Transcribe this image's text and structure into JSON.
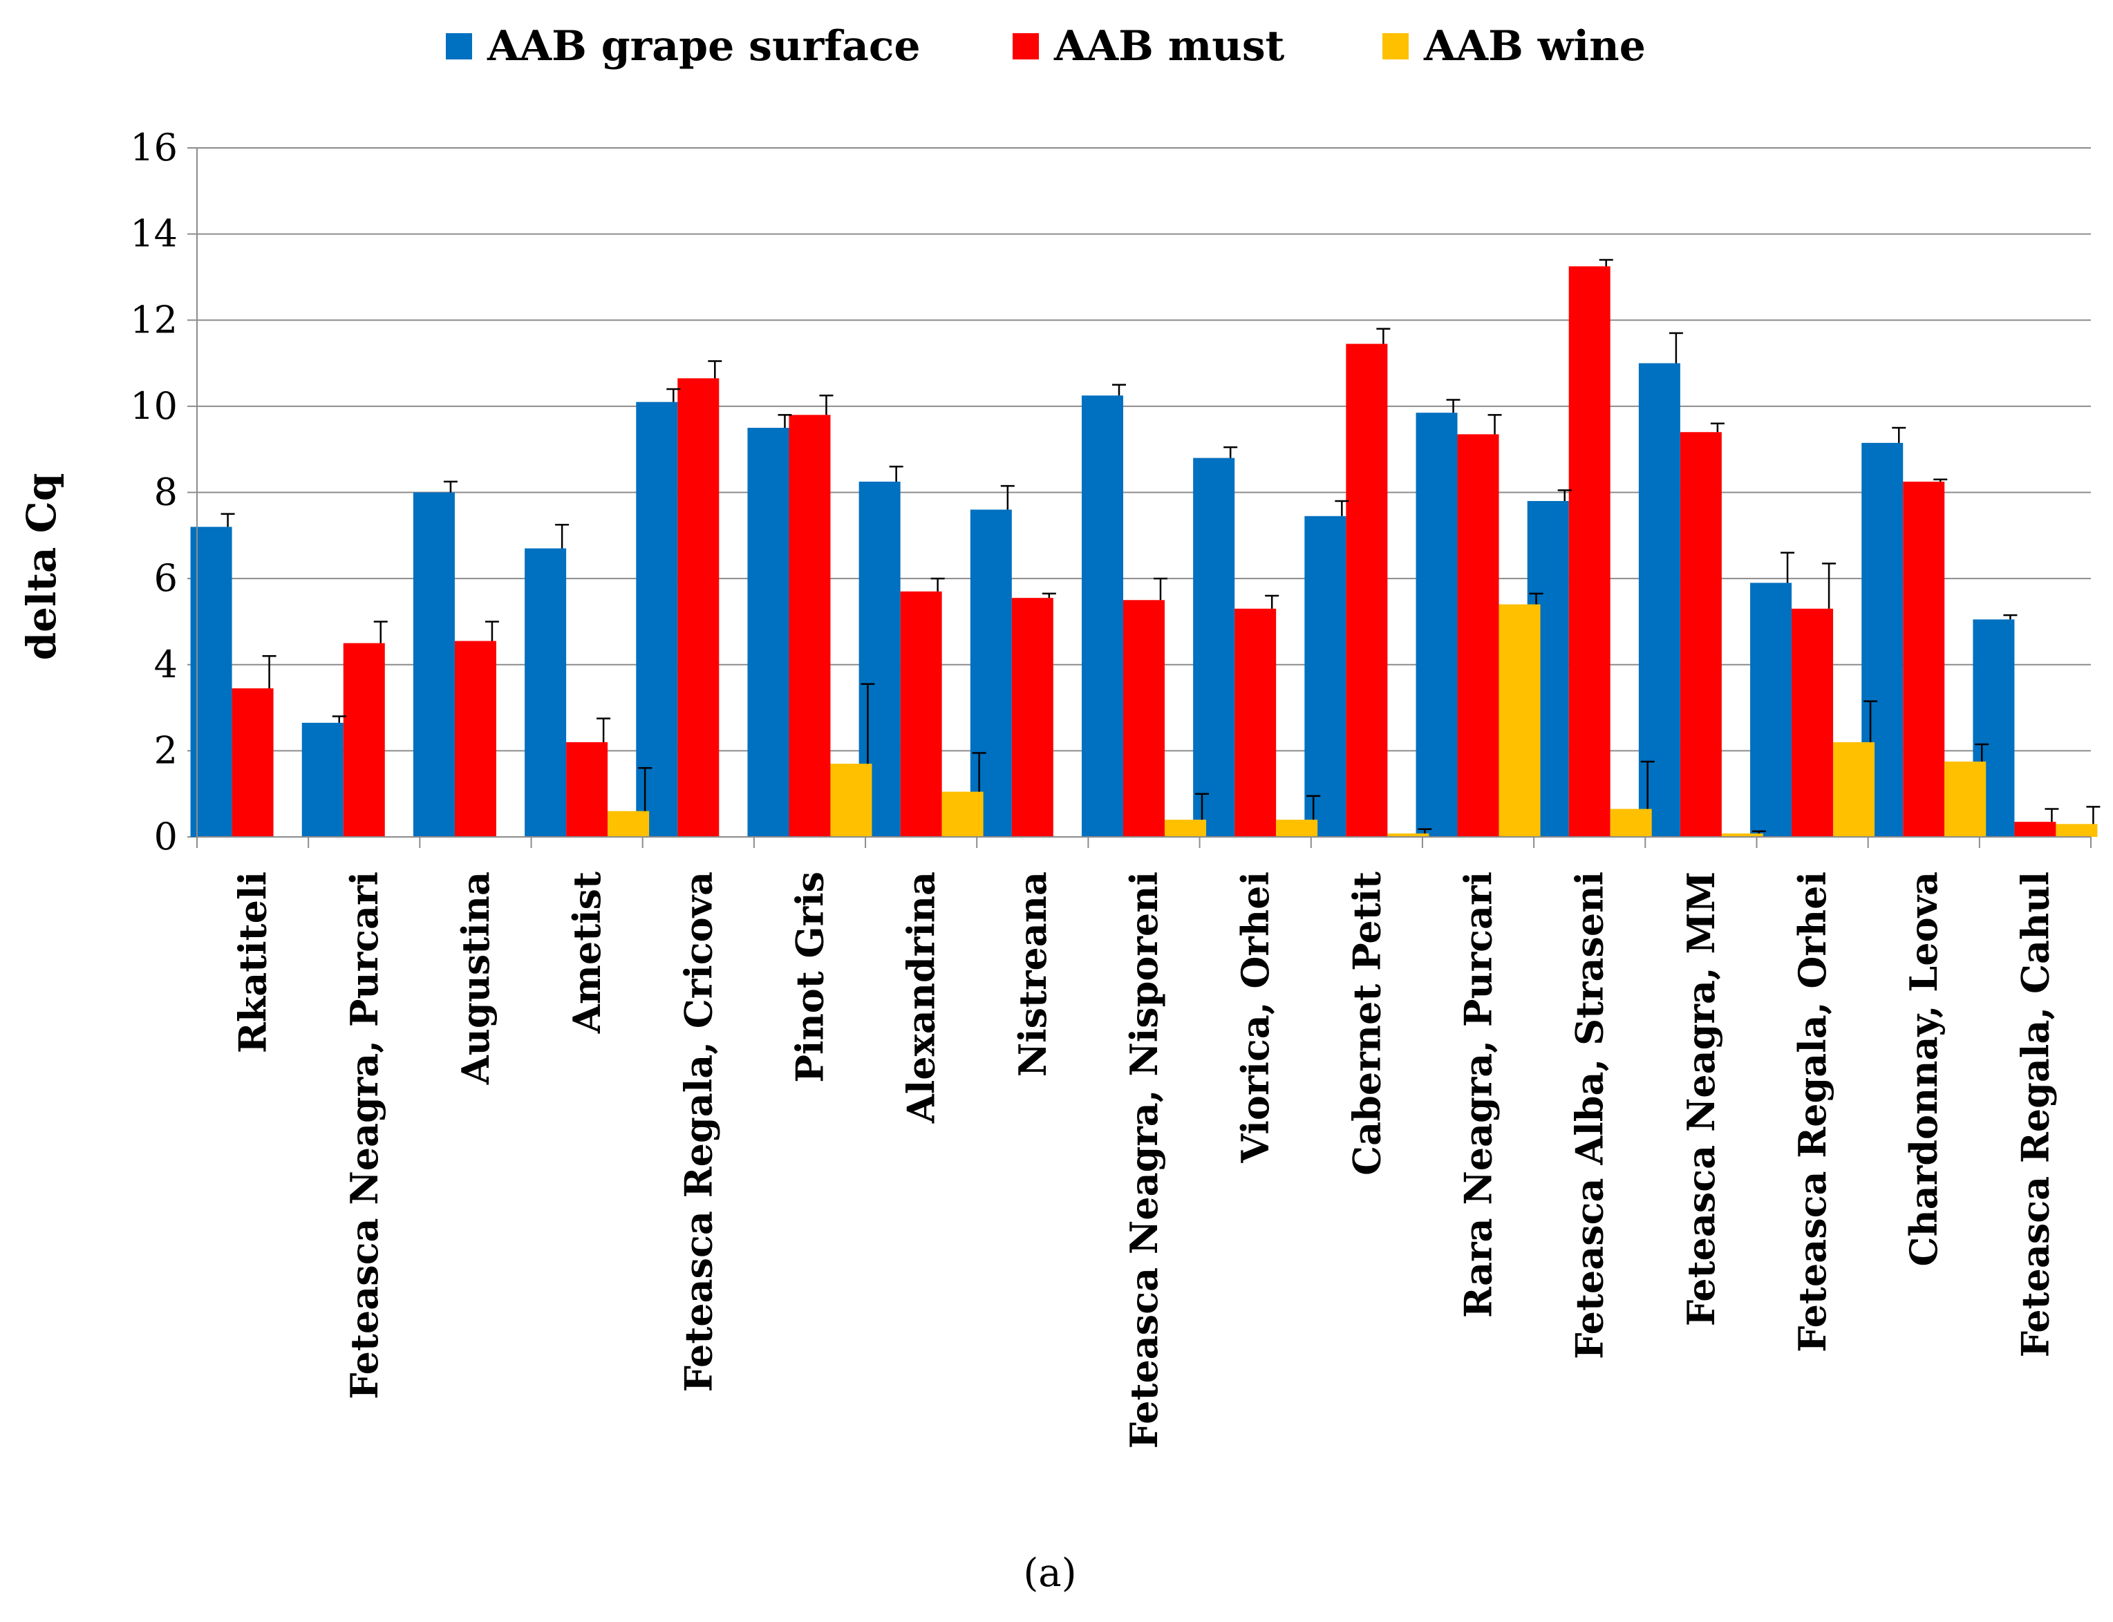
{
  "caption": "(a)",
  "chart_data": {
    "type": "bar",
    "title": "",
    "xlabel": "",
    "ylabel": "delta Cq",
    "ylim": [
      0,
      16
    ],
    "yticks": [
      0,
      2,
      4,
      6,
      8,
      10,
      12,
      14,
      16
    ],
    "grid": true,
    "legend_position": "top",
    "categories": [
      "Rkatiteli",
      "Feteasca Neagra, Purcari",
      "Augustina",
      "Ametist",
      "Feteasca Regala, Cricova",
      "Pinot Gris",
      "Alexandrina",
      "Nistreana",
      "Feteasca Neagra, Nisporeni",
      "Viorica, Orhei",
      "Cabernet Petit",
      "Rara Neagra, Purcari",
      "Feteasca Alba, Straseni",
      "Feteasca Neagra, MM",
      "Feteasca Regala, Orhei",
      "Chardonnay, Leova",
      "Feteasca Regala, Cahul"
    ],
    "series": [
      {
        "name": "AAB grape surface",
        "color": "#0070C0",
        "values": [
          7.2,
          2.65,
          8.0,
          6.7,
          10.1,
          9.5,
          8.25,
          7.6,
          10.25,
          8.8,
          7.45,
          9.85,
          7.8,
          11.0,
          5.9,
          9.15,
          5.05
        ],
        "errors": [
          0.3,
          0.15,
          0.25,
          0.55,
          0.3,
          0.3,
          0.35,
          0.55,
          0.25,
          0.25,
          0.35,
          0.3,
          0.25,
          0.7,
          0.7,
          0.35,
          0.1
        ]
      },
      {
        "name": "AAB must",
        "color": "#FF0000",
        "values": [
          3.45,
          4.5,
          4.55,
          2.2,
          10.65,
          9.8,
          5.7,
          5.55,
          5.5,
          5.3,
          11.45,
          9.35,
          13.25,
          9.4,
          5.3,
          8.25,
          0.35
        ],
        "errors": [
          0.75,
          0.5,
          0.45,
          0.55,
          0.4,
          0.45,
          0.3,
          0.1,
          0.5,
          0.3,
          0.35,
          0.45,
          0.15,
          0.2,
          1.05,
          0.05,
          0.3
        ]
      },
      {
        "name": "AAB wine",
        "color": "#FFC000",
        "values": [
          0,
          0,
          0,
          0.6,
          0,
          1.7,
          1.05,
          0,
          0.4,
          0.4,
          0.08,
          5.4,
          0.65,
          0.08,
          2.2,
          1.75,
          0.3
        ],
        "errors": [
          0,
          0,
          0,
          1.0,
          0,
          1.85,
          0.9,
          0,
          0.6,
          0.55,
          0.1,
          0.25,
          1.1,
          0.05,
          0.95,
          0.4,
          0.4
        ]
      }
    ]
  }
}
